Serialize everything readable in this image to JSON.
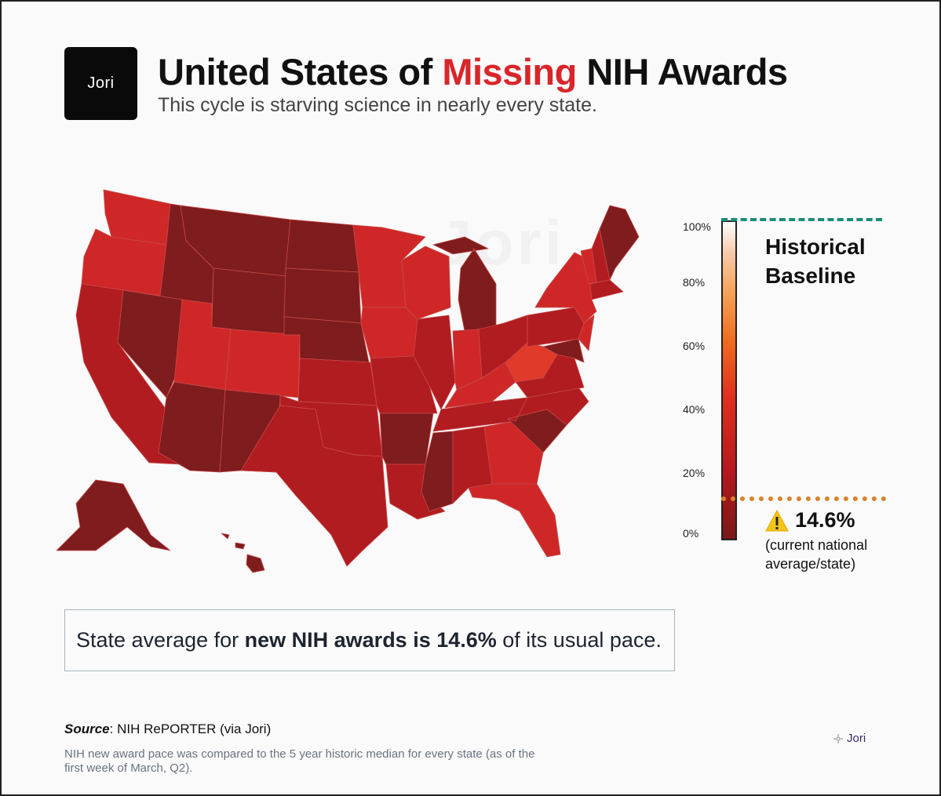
{
  "brand": {
    "logo_text": "Jori",
    "small_logo_text": "Jori",
    "watermark": "Jori"
  },
  "header": {
    "title_pre": "United States of ",
    "title_accent": "Missing",
    "title_post": " NIH Awards",
    "subtitle": "This cycle is starving science in nearly every state."
  },
  "legend": {
    "ticks": [
      "100%",
      "80%",
      "60%",
      "40%",
      "20%",
      "0%"
    ],
    "baseline_label": "Historical Baseline",
    "baseline_value": 100,
    "current_value": 14.6,
    "current_value_label": "14.6%",
    "current_note": "(current national average/state)",
    "scale": [
      0,
      100
    ],
    "colors": {
      "baseline_line": "#1a8c77",
      "current_line": "#d9822b",
      "low": "#7a1818",
      "high": "#ffffff"
    }
  },
  "summary": {
    "pre": "State average for ",
    "bold": "new NIH awards is 14.6%",
    "post": " of its usual pace."
  },
  "footer": {
    "source_label": "Source",
    "source_text": ": NIH RePORTER (via Jori)",
    "note": "NIH new award pace was compared to the 5 year historic median for every state (as of the first week of March, Q2)."
  },
  "map": {
    "colors": {
      "dark": "#7f1c1d",
      "medium": "#b11c20",
      "bright": "#cf2727",
      "highlight": "#e03a2a",
      "border": "#c84a4a"
    },
    "states": [
      {
        "id": "WA",
        "shade": "bright"
      },
      {
        "id": "OR",
        "shade": "bright"
      },
      {
        "id": "CA",
        "shade": "medium"
      },
      {
        "id": "ID",
        "shade": "dark"
      },
      {
        "id": "NV",
        "shade": "dark"
      },
      {
        "id": "MT",
        "shade": "dark"
      },
      {
        "id": "WY",
        "shade": "dark"
      },
      {
        "id": "UT",
        "shade": "bright"
      },
      {
        "id": "AZ",
        "shade": "dark"
      },
      {
        "id": "CO",
        "shade": "bright"
      },
      {
        "id": "NM",
        "shade": "dark"
      },
      {
        "id": "ND",
        "shade": "dark"
      },
      {
        "id": "SD",
        "shade": "dark"
      },
      {
        "id": "NE",
        "shade": "dark"
      },
      {
        "id": "KS",
        "shade": "medium"
      },
      {
        "id": "OK",
        "shade": "medium"
      },
      {
        "id": "TX",
        "shade": "medium"
      },
      {
        "id": "MN",
        "shade": "bright"
      },
      {
        "id": "IA",
        "shade": "bright"
      },
      {
        "id": "MO",
        "shade": "medium"
      },
      {
        "id": "AR",
        "shade": "dark"
      },
      {
        "id": "LA",
        "shade": "medium"
      },
      {
        "id": "WI",
        "shade": "bright"
      },
      {
        "id": "IL",
        "shade": "medium"
      },
      {
        "id": "MS",
        "shade": "dark"
      },
      {
        "id": "MI",
        "shade": "dark"
      },
      {
        "id": "IN",
        "shade": "bright"
      },
      {
        "id": "KY",
        "shade": "bright"
      },
      {
        "id": "TN",
        "shade": "medium"
      },
      {
        "id": "AL",
        "shade": "medium"
      },
      {
        "id": "OH",
        "shade": "medium"
      },
      {
        "id": "WV",
        "shade": "highlight"
      },
      {
        "id": "GA",
        "shade": "bright"
      },
      {
        "id": "FL",
        "shade": "bright"
      },
      {
        "id": "SC",
        "shade": "dark"
      },
      {
        "id": "NC",
        "shade": "medium"
      },
      {
        "id": "VA",
        "shade": "medium"
      },
      {
        "id": "PA",
        "shade": "medium"
      },
      {
        "id": "NY",
        "shade": "bright"
      },
      {
        "id": "VT",
        "shade": "bright"
      },
      {
        "id": "NH",
        "shade": "medium"
      },
      {
        "id": "ME",
        "shade": "dark"
      },
      {
        "id": "MA",
        "shade": "medium"
      },
      {
        "id": "NJ",
        "shade": "bright"
      },
      {
        "id": "MD",
        "shade": "dark"
      },
      {
        "id": "AK",
        "shade": "dark"
      },
      {
        "id": "HI",
        "shade": "dark"
      }
    ]
  }
}
